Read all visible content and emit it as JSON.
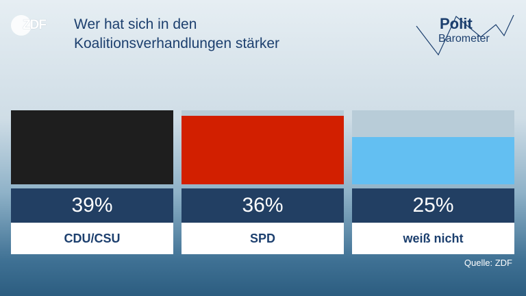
{
  "brand": {
    "logo_text": "ZDF"
  },
  "title_line1": "Wer hat sich in den",
  "title_line2": "Koalitionsverhandlungen stärker",
  "badge": {
    "line1": "Polit",
    "line2": "Barometer"
  },
  "source": "Quelle: ZDF",
  "chart_data": {
    "type": "bar",
    "categories": [
      "CDU/CSU",
      "SPD",
      "weiß nicht"
    ],
    "values": [
      39,
      36,
      25
    ],
    "value_labels": [
      "39%",
      "36%",
      "25%"
    ],
    "colors": [
      "#1e1e1e",
      "#d21f00",
      "#63bff2"
    ],
    "ylim": [
      0,
      39
    ]
  }
}
